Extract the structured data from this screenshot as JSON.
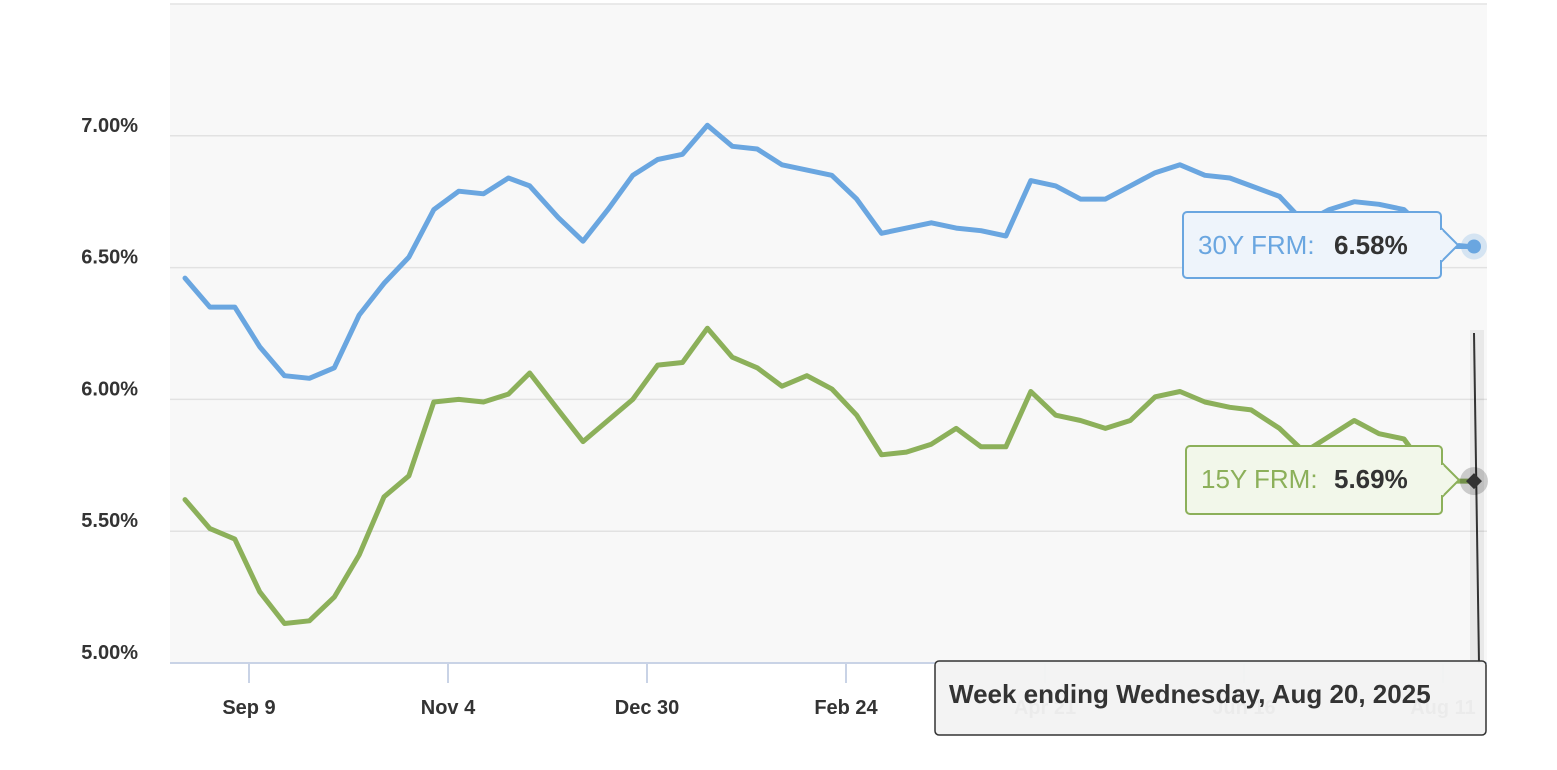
{
  "chart_data": {
    "type": "line",
    "title": "",
    "xlabel": "",
    "ylabel": "",
    "ylim": [
      5.0,
      7.5
    ],
    "y_ticks": [
      5.0,
      5.5,
      6.0,
      6.5,
      7.0
    ],
    "y_tick_labels": [
      "5.00%",
      "5.50%",
      "6.00%",
      "6.50%",
      "7.00%"
    ],
    "x_tick_labels": [
      "Sep 9",
      "Nov 4",
      "Dec 30",
      "Feb 24",
      "Apr 21",
      "Jun 16",
      "Aug 11"
    ],
    "x": [
      "2024-08-22",
      "2024-08-29",
      "2024-09-05",
      "2024-09-12",
      "2024-09-19",
      "2024-09-26",
      "2024-10-03",
      "2024-10-10",
      "2024-10-17",
      "2024-10-24",
      "2024-10-31",
      "2024-11-07",
      "2024-11-14",
      "2024-11-21",
      "2024-11-27",
      "2024-12-05",
      "2024-12-12",
      "2024-12-19",
      "2024-12-26",
      "2025-01-02",
      "2025-01-09",
      "2025-01-16",
      "2025-01-23",
      "2025-01-30",
      "2025-02-06",
      "2025-02-13",
      "2025-02-20",
      "2025-02-27",
      "2025-03-06",
      "2025-03-13",
      "2025-03-20",
      "2025-03-27",
      "2025-04-03",
      "2025-04-10",
      "2025-04-17",
      "2025-04-24",
      "2025-05-01",
      "2025-05-08",
      "2025-05-15",
      "2025-05-22",
      "2025-05-29",
      "2025-06-05",
      "2025-06-12",
      "2025-06-18",
      "2025-06-26",
      "2025-07-03",
      "2025-07-10",
      "2025-07-17",
      "2025-07-24",
      "2025-07-31",
      "2025-08-07",
      "2025-08-14",
      "2025-08-21"
    ],
    "series": [
      {
        "name": "30Y FRM",
        "color": "#6aa6e0",
        "values": [
          6.46,
          6.35,
          6.35,
          6.2,
          6.09,
          6.08,
          6.12,
          6.32,
          6.44,
          6.54,
          6.72,
          6.79,
          6.78,
          6.84,
          6.81,
          6.69,
          6.6,
          6.72,
          6.85,
          6.91,
          6.93,
          7.04,
          6.96,
          6.95,
          6.89,
          6.87,
          6.85,
          6.76,
          6.63,
          6.65,
          6.67,
          6.65,
          6.64,
          6.62,
          6.83,
          6.81,
          6.76,
          6.76,
          6.81,
          6.86,
          6.89,
          6.85,
          6.84,
          6.81,
          6.77,
          6.67,
          6.72,
          6.75,
          6.74,
          6.72,
          6.63,
          6.58,
          6.58
        ]
      },
      {
        "name": "15Y FRM",
        "color": "#8cb05a",
        "values": [
          5.62,
          5.51,
          5.47,
          5.27,
          5.15,
          5.16,
          5.25,
          5.41,
          5.63,
          5.71,
          5.99,
          6.0,
          5.99,
          6.02,
          6.1,
          5.96,
          5.84,
          5.92,
          6.0,
          6.13,
          6.14,
          6.27,
          6.16,
          6.12,
          6.05,
          6.09,
          6.04,
          5.94,
          5.79,
          5.8,
          5.83,
          5.89,
          5.82,
          5.82,
          6.03,
          5.94,
          5.92,
          5.89,
          5.92,
          6.01,
          6.03,
          5.99,
          5.97,
          5.96,
          5.89,
          5.8,
          5.86,
          5.92,
          5.87,
          5.85,
          5.72,
          5.69,
          5.69
        ]
      }
    ],
    "grid": true,
    "legend": "none",
    "plot_background": "#f8f8f8",
    "tooltip": {
      "series_30_label": "30Y FRM:",
      "series_30_value": "6.58%",
      "series_15_label": "15Y FRM:",
      "series_15_value": "5.69%",
      "date_text": "Week ending Wednesday, Aug 20, 2025"
    }
  }
}
